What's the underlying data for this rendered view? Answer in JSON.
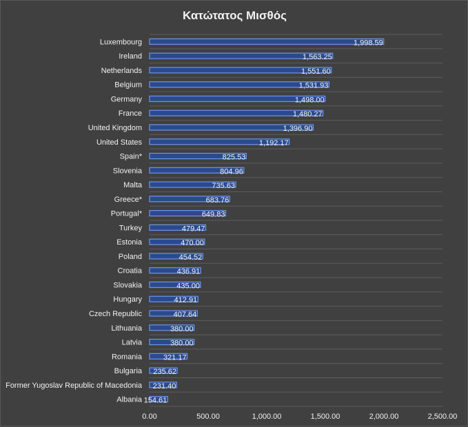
{
  "chart_data": {
    "type": "bar",
    "orientation": "horizontal",
    "title": "Κατώτατος Μισθός",
    "xlabel": "",
    "ylabel": "",
    "xlim": [
      0,
      2500
    ],
    "x_ticks": [
      "0.00",
      "500.00",
      "1,000.00",
      "1,500.00",
      "2,000.00",
      "2,500.00"
    ],
    "grid": true,
    "legend": "none",
    "categories": [
      "Luxembourg",
      "Ireland",
      "Netherlands",
      "Belgium",
      "Germany",
      "France",
      "United Kingdom",
      "United States",
      "Spain*",
      "Slovenia",
      "Malta",
      "Greece*",
      "Portugal*",
      "Turkey",
      "Estonia",
      "Poland",
      "Croatia",
      "Slovakia",
      "Hungary",
      "Czech Republic",
      "Lithuania",
      "Latvia",
      "Romania",
      "Bulgaria",
      "Former Yugoslav Republic of Macedonia",
      "Albania"
    ],
    "values": [
      1998.59,
      1563.25,
      1551.6,
      1531.93,
      1498.0,
      1480.27,
      1396.9,
      1192.17,
      825.53,
      804.96,
      735.63,
      683.76,
      649.83,
      479.47,
      470.0,
      454.52,
      436.91,
      435.0,
      412.91,
      407.64,
      380.0,
      380.0,
      321.17,
      235.62,
      231.4,
      154.61
    ],
    "value_labels": [
      "1,998.59",
      "1,563.25",
      "1,551.60",
      "1,531.93",
      "1,498.00",
      "1,480.27",
      "1,396.90",
      "1,192.17",
      "825.53",
      "804.96",
      "735.63",
      "683.76",
      "649.83",
      "479.47",
      "470.00",
      "454.52",
      "436.91",
      "435.00",
      "412.91",
      "407.64",
      "380.00",
      "380.00",
      "321.17",
      "235.62",
      "231.40",
      "154.61"
    ],
    "colors": {
      "bar_fill": "#2b4a8c",
      "bar_stroke": "#6f95e8",
      "background": "#404040"
    }
  }
}
